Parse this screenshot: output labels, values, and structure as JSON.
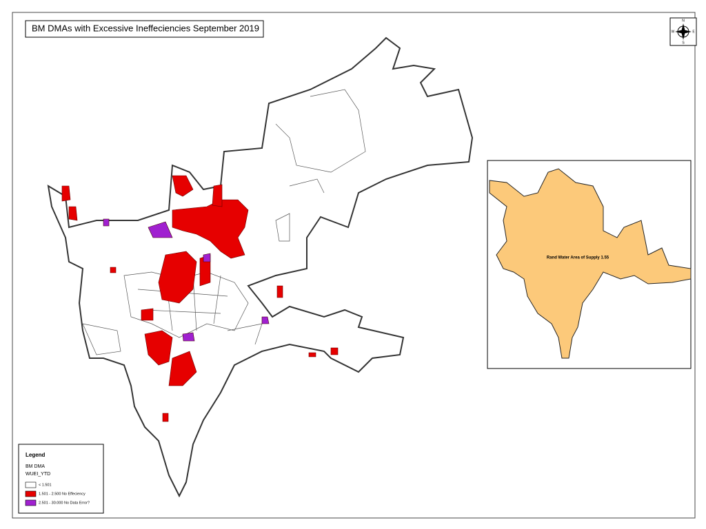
{
  "header": {
    "title": "BM DMAs with Excessive Ineffeciencies September 2019"
  },
  "compass": {
    "north": "N",
    "east": "E",
    "south": "S",
    "west": "W"
  },
  "inset": {
    "label": "Rand Water Area of Supply 1.55"
  },
  "legend": {
    "title": "Legend",
    "layer": "BM DMA",
    "field": "WUEI_YTD",
    "items": [
      {
        "label": "< 1.501",
        "color": "#ffffff"
      },
      {
        "label": "1.501 - 2.500  No Effeciency",
        "color": "#e60000"
      },
      {
        "label": "2.501 - 30.000 No Data Error?",
        "color": "#a020d0"
      }
    ]
  }
}
